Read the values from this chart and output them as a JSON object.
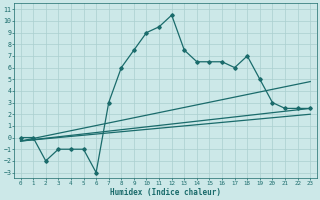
{
  "xlabel": "Humidex (Indice chaleur)",
  "bg_color": "#cce8e8",
  "grid_color": "#aacfcf",
  "line_color": "#1a6b6b",
  "xlim": [
    -0.5,
    23.5
  ],
  "ylim": [
    -3.5,
    11.5
  ],
  "xticks": [
    0,
    1,
    2,
    3,
    4,
    5,
    6,
    7,
    8,
    9,
    10,
    11,
    12,
    13,
    14,
    15,
    16,
    17,
    18,
    19,
    20,
    21,
    22,
    23
  ],
  "yticks": [
    -3,
    -2,
    -1,
    0,
    1,
    2,
    3,
    4,
    5,
    6,
    7,
    8,
    9,
    10,
    11
  ],
  "main_x": [
    0,
    1,
    2,
    3,
    4,
    5,
    6,
    7,
    8,
    9,
    10,
    11,
    12,
    13,
    14,
    15,
    16,
    17,
    18,
    19,
    20,
    21,
    22,
    23
  ],
  "main_y": [
    0,
    0,
    -2,
    -1,
    -1,
    -1,
    -3,
    3,
    6,
    7.5,
    9,
    9.5,
    10.5,
    7.5,
    6.5,
    6.5,
    6.5,
    6,
    7,
    5,
    3,
    2.5,
    2.5,
    2.5
  ],
  "line2_x": [
    0,
    23
  ],
  "line2_y": [
    -0.3,
    2.5
  ],
  "line3_x": [
    0,
    23
  ],
  "line3_y": [
    -0.3,
    2.0
  ],
  "line4_x": [
    0,
    23
  ],
  "line4_y": [
    -0.3,
    4.8
  ]
}
